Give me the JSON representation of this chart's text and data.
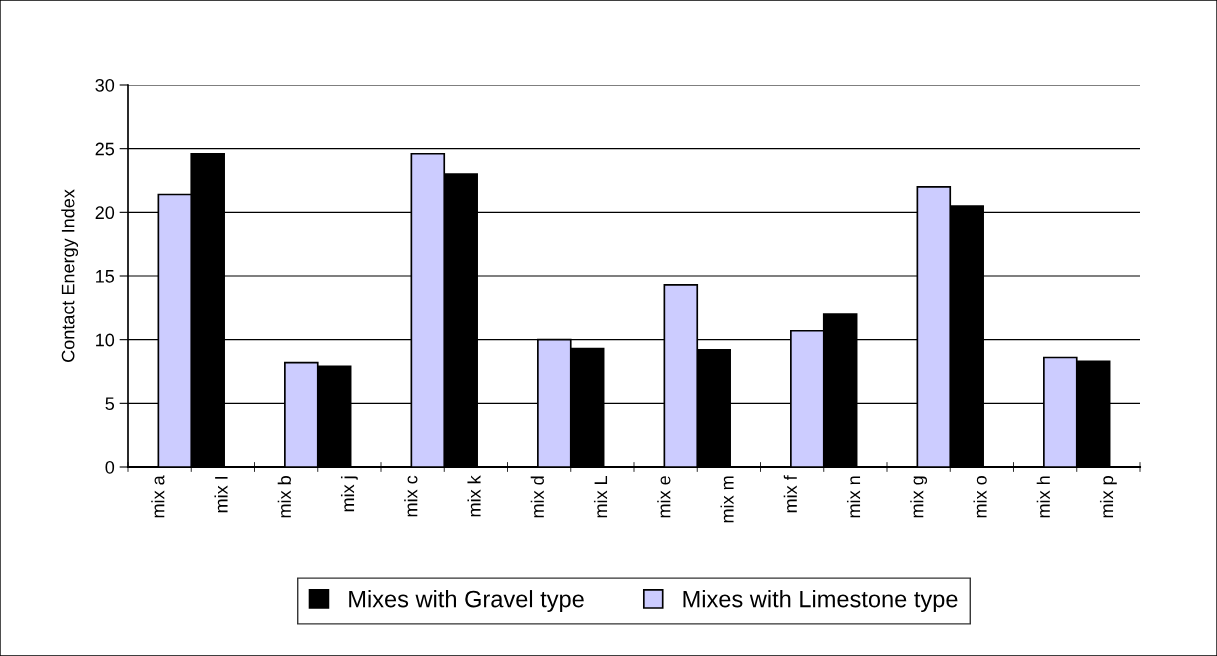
{
  "chart_data": {
    "type": "bar",
    "ylabel": "Contact Energy Index",
    "categories": [
      "mix a",
      "mix I",
      "mix b",
      "mix j",
      "mix c",
      "mix k",
      "mix d",
      "mix L",
      "mix e",
      "mix m",
      "mix f",
      "mix n",
      "mix g",
      "mix o",
      "mix h",
      "mix p"
    ],
    "series": [
      {
        "name": "Mixes with Gravel type",
        "color": "#000000",
        "values": [
          null,
          24.6,
          null,
          7.9,
          null,
          23.0,
          null,
          9.3,
          null,
          9.2,
          null,
          12.0,
          null,
          20.5,
          null,
          8.3
        ]
      },
      {
        "name": "Mixes with Limestone type",
        "color": "#ccccff",
        "values": [
          21.4,
          null,
          8.2,
          null,
          24.6,
          null,
          10.0,
          null,
          14.3,
          null,
          10.7,
          null,
          22.0,
          null,
          8.6,
          null
        ]
      }
    ],
    "ylim": [
      0,
      30
    ],
    "yticks": [
      0,
      5,
      10,
      15,
      20,
      25,
      30
    ],
    "grid": "y",
    "legend": "bottom"
  }
}
